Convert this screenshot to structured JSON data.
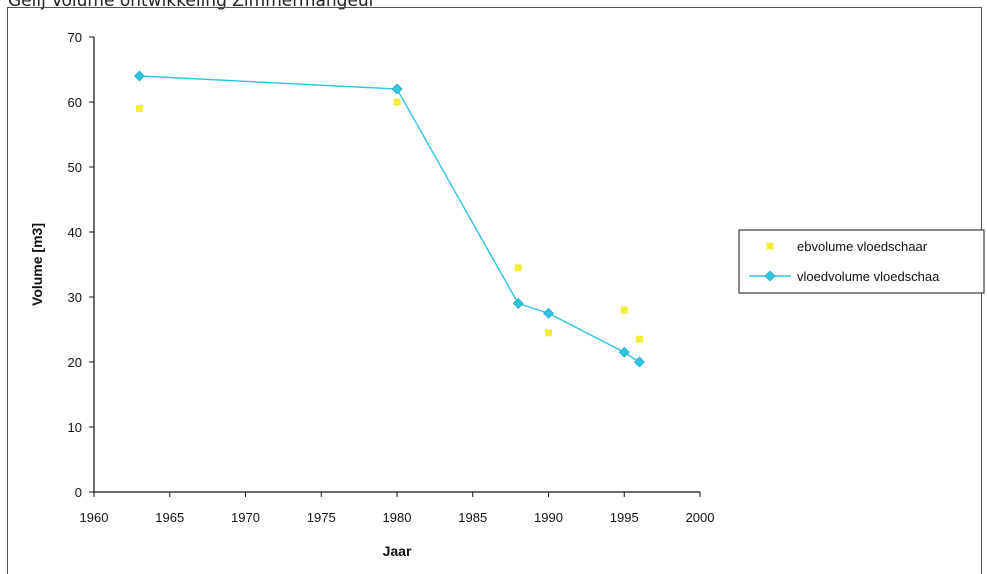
{
  "page": {
    "title": "Gelij Volume ontwikkeling Zimmermangeul"
  },
  "chart_data": {
    "type": "scatter",
    "title": "Gelij Volume ontwikkeling Zimmermangeul",
    "xlabel": "Jaar",
    "ylabel": "Volume [m3]",
    "xlim": [
      1960,
      2000
    ],
    "ylim": [
      0,
      70
    ],
    "xticks": [
      1960,
      1965,
      1970,
      1975,
      1980,
      1985,
      1990,
      1995,
      2000
    ],
    "yticks": [
      0,
      10,
      20,
      30,
      40,
      50,
      60,
      70
    ],
    "grid": false,
    "legend_position": "right",
    "series": [
      {
        "name": "ebvolume vloedschaar",
        "mode": "markers",
        "color": "#f2ee3a",
        "marker": "square",
        "x": [
          1963,
          1980,
          1988,
          1990,
          1995,
          1996
        ],
        "y": [
          59,
          60,
          34.5,
          24.5,
          28,
          23.5
        ]
      },
      {
        "name": "vloedvolume vloedschaa",
        "mode": "lines+markers",
        "color": "#2cc6e0",
        "marker": "diamond",
        "x": [
          1963,
          1980,
          1988,
          1990,
          1995,
          1996
        ],
        "y": [
          64,
          62,
          29,
          27.5,
          21.5,
          20
        ]
      }
    ]
  }
}
